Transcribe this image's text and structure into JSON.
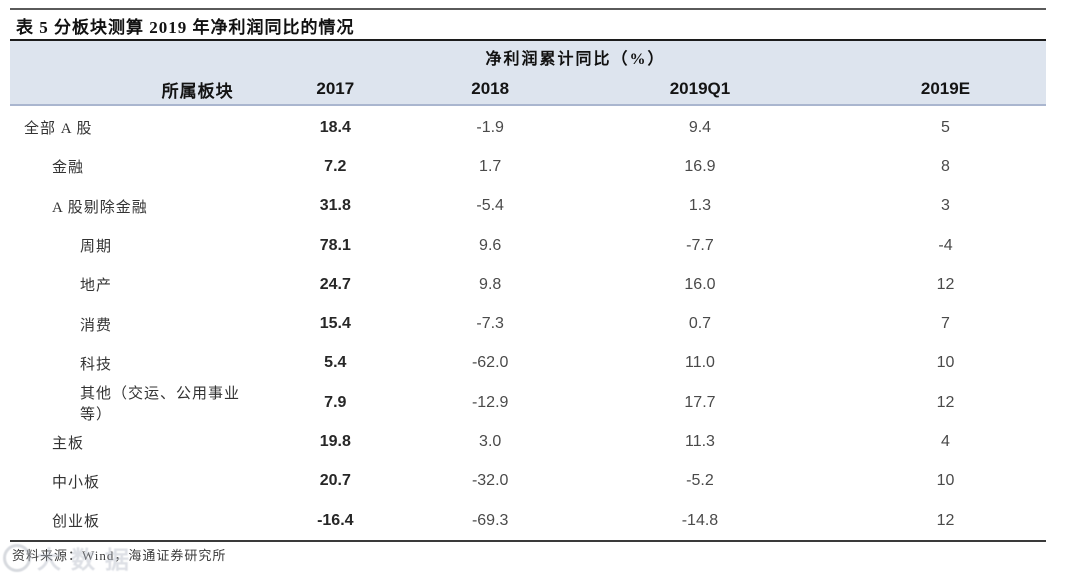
{
  "title": "表 5 分板块测算 2019 年净利润同比的情况",
  "table": {
    "merged_header": "净利润累计同比（%）",
    "columns": [
      "所属板块",
      "2017",
      "2018",
      "2019Q1",
      "2019E"
    ],
    "rows": [
      {
        "label": "全部 A 股",
        "indent": 0,
        "values": [
          "18.4",
          "-1.9",
          "9.4",
          "5"
        ]
      },
      {
        "label": "金融",
        "indent": 1,
        "values": [
          "7.2",
          "1.7",
          "16.9",
          "8"
        ]
      },
      {
        "label": "A 股剔除金融",
        "indent": 1,
        "values": [
          "31.8",
          "-5.4",
          "1.3",
          "3"
        ]
      },
      {
        "label": "周期",
        "indent": 2,
        "values": [
          "78.1",
          "9.6",
          "-7.7",
          "-4"
        ]
      },
      {
        "label": "地产",
        "indent": 2,
        "values": [
          "24.7",
          "9.8",
          "16.0",
          "12"
        ]
      },
      {
        "label": "消费",
        "indent": 2,
        "values": [
          "15.4",
          "-7.3",
          "0.7",
          "7"
        ]
      },
      {
        "label": "科技",
        "indent": 2,
        "values": [
          "5.4",
          "-62.0",
          "11.0",
          "10"
        ]
      },
      {
        "label": "其他（交运、公用事业等）",
        "indent": 2,
        "values": [
          "7.9",
          "-12.9",
          "17.7",
          "12"
        ]
      },
      {
        "label": "主板",
        "indent": 1,
        "values": [
          "19.8",
          "3.0",
          "11.3",
          "4"
        ]
      },
      {
        "label": "中小板",
        "indent": 1,
        "values": [
          "20.7",
          "-32.0",
          "-5.2",
          "10"
        ]
      },
      {
        "label": "创业板",
        "indent": 1,
        "values": [
          "-16.4",
          "-69.3",
          "-14.8",
          "12"
        ]
      }
    ]
  },
  "footer": {
    "source": "资料来源：Wind，海通证券研究所"
  },
  "watermark": {
    "text": "大数据"
  },
  "colors": {
    "header_band": "#dde4ee",
    "band_border": "#aab6cf",
    "title_rule": "#1c1c1c",
    "bottom_rule": "#3a3a3a"
  }
}
